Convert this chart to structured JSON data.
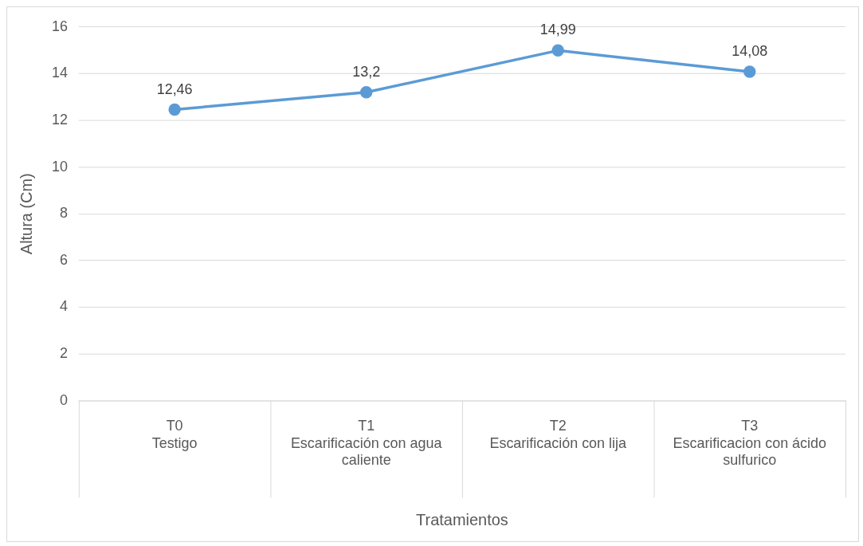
{
  "chart_data": {
    "type": "line",
    "categories": [
      "T0\nTestigo",
      "T1\nEscarificación con agua\ncaliente",
      "T2\nEscarificación con lija",
      "T3\nEscarificacion con ácido\nsulfurico"
    ],
    "values": [
      12.46,
      13.2,
      14.99,
      14.08
    ],
    "value_labels": [
      "12,46",
      "13,2",
      "14,99",
      "14,08"
    ],
    "color": "#5b9bd5",
    "xlabel": "Tratamientos",
    "ylabel": "Altura (Cm)",
    "ylim": [
      0,
      16
    ],
    "yticks": [
      0,
      2,
      4,
      6,
      8,
      10,
      12,
      14,
      16
    ],
    "grid": "y",
    "legend": false,
    "marker": "circle",
    "line_style": "solid"
  }
}
